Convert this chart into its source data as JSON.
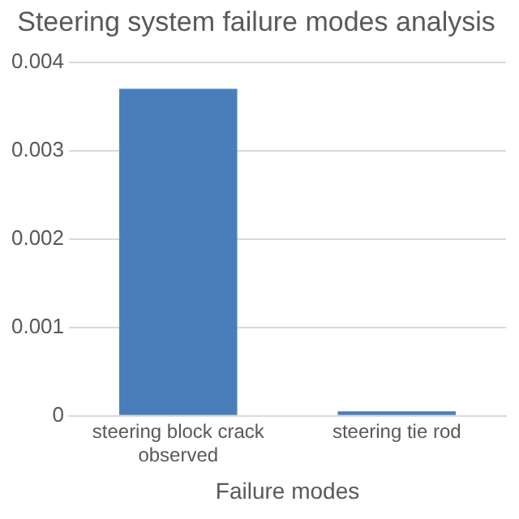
{
  "chart_data": {
    "type": "bar",
    "title": "Steering system failure modes analysis",
    "xlabel": "Failure modes",
    "categories": [
      [
        "steering block crack",
        "observed"
      ],
      [
        "steering tie rod"
      ]
    ],
    "values": [
      0.0037,
      5e-05
    ],
    "color": "#4a7ebb",
    "ylim": [
      0,
      0.004
    ],
    "yticks": [
      0,
      0.001,
      0.002,
      0.003,
      0.004
    ],
    "grid": "y",
    "legend": false
  }
}
